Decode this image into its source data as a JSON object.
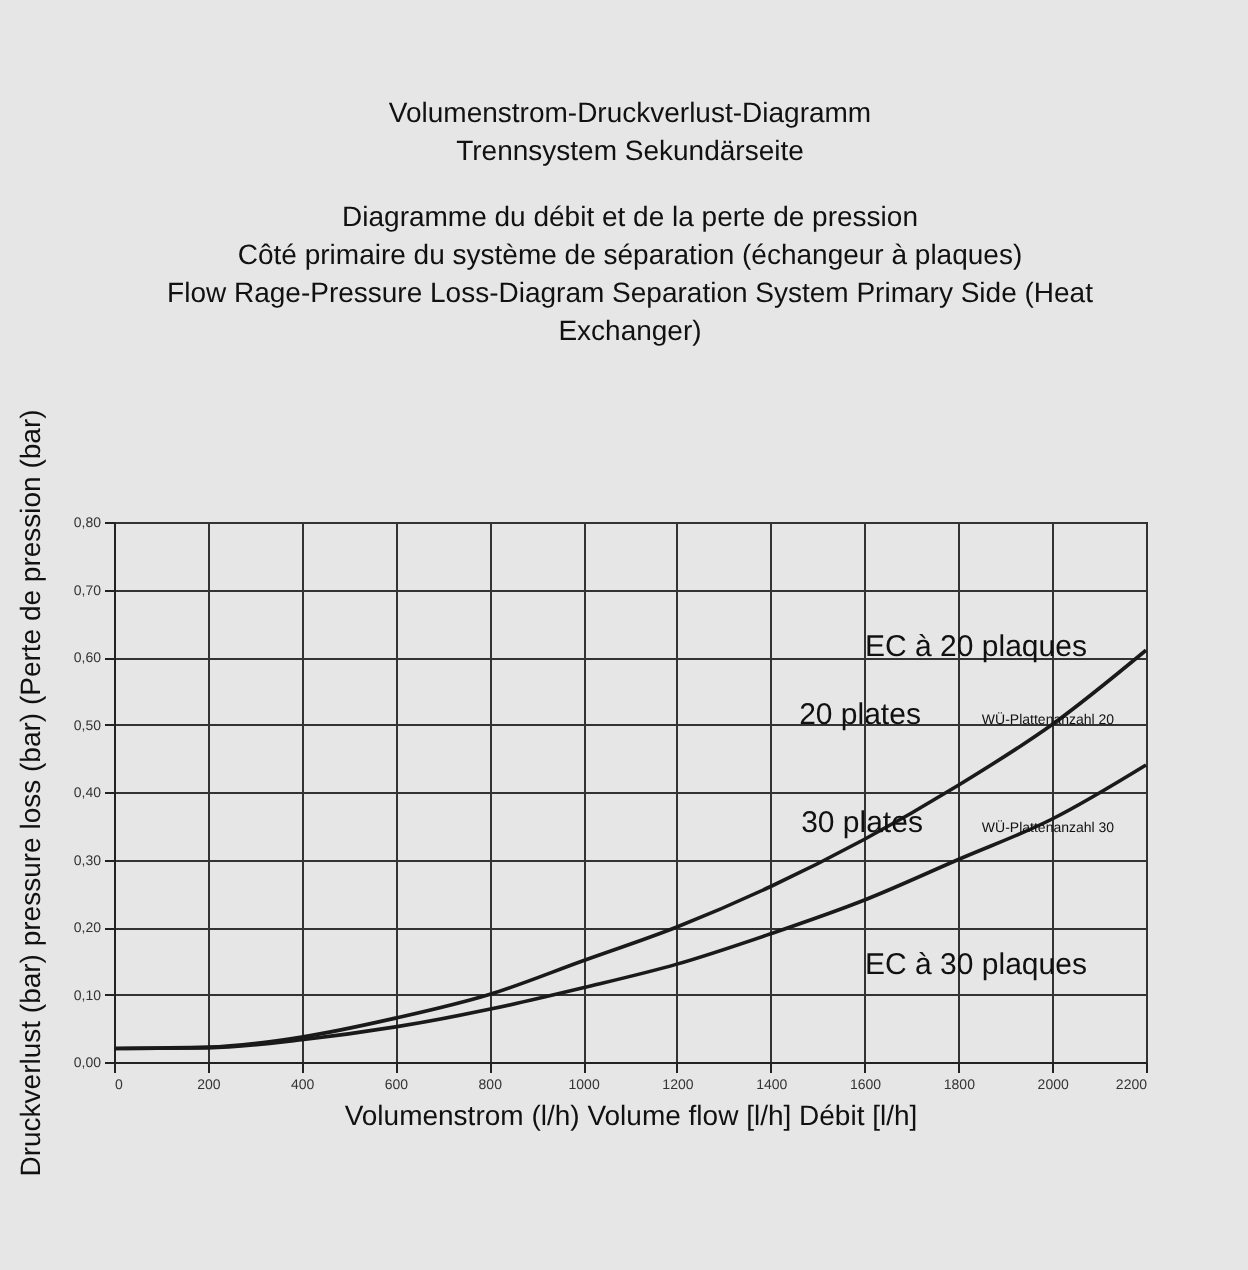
{
  "chart_data": {
    "type": "line",
    "title": "Volumenstrom-Druckverlust-Diagramm",
    "subtitle": "Trennsystem Sekundärseite",
    "xlabel": "Volumenstrom (l/h)  Volume flow [l/h] Débit [l/h]",
    "ylabel": "Druckverlust (bar) pressure loss (bar) (Perte de pression (bar)",
    "annotations": [
      "Diagramme du débit et de la perte de pression",
      "Côté primaire du système de séparation (échangeur à plaques)",
      "Flow Rage-Pressure Loss-Diagram Separation System Primary Side (Heat Exchanger)",
      "EC à 20 plaques",
      "20 plates",
      "30 plates",
      "EC à 30 plaques",
      "WÜ-Plattenanzahl 20",
      "WÜ-Plattenanzahl 30"
    ],
    "x": [
      0,
      200,
      400,
      600,
      800,
      1000,
      1200,
      1400,
      1600,
      1800,
      2000,
      2200
    ],
    "series": [
      {
        "color": "#1a1a1a",
        "values": [
          0.02,
          0.022,
          0.037,
          0.065,
          0.1,
          0.15,
          0.2,
          0.26,
          0.33,
          0.41,
          0.5,
          0.61
        ]
      },
      {
        "color": "#1a1a1a",
        "values": [
          0.02,
          0.021,
          0.033,
          0.052,
          0.078,
          0.11,
          0.145,
          0.19,
          0.24,
          0.3,
          0.36,
          0.44
        ]
      }
    ],
    "xlim": [
      0,
      2200
    ],
    "xticks": [
      0,
      200,
      400,
      600,
      800,
      1000,
      1200,
      1400,
      1600,
      1800,
      2000,
      2200
    ],
    "ylim": [
      0,
      0.8
    ],
    "yticks": [
      {
        "value": 0,
        "label": "0,00"
      },
      {
        "value": 0.1,
        "label": "0,10"
      },
      {
        "value": 0.2,
        "label": "0,20"
      },
      {
        "value": 0.3,
        "label": "0,30"
      },
      {
        "value": 0.4,
        "label": "0,40"
      },
      {
        "value": 0.5,
        "label": "0,50"
      },
      {
        "value": 0.6,
        "label": "0,60"
      },
      {
        "value": 0.7,
        "label": "0,70"
      },
      {
        "value": 0.8,
        "label": "0,80"
      }
    ],
    "grid": true,
    "legend": false,
    "line_style": "solid"
  }
}
